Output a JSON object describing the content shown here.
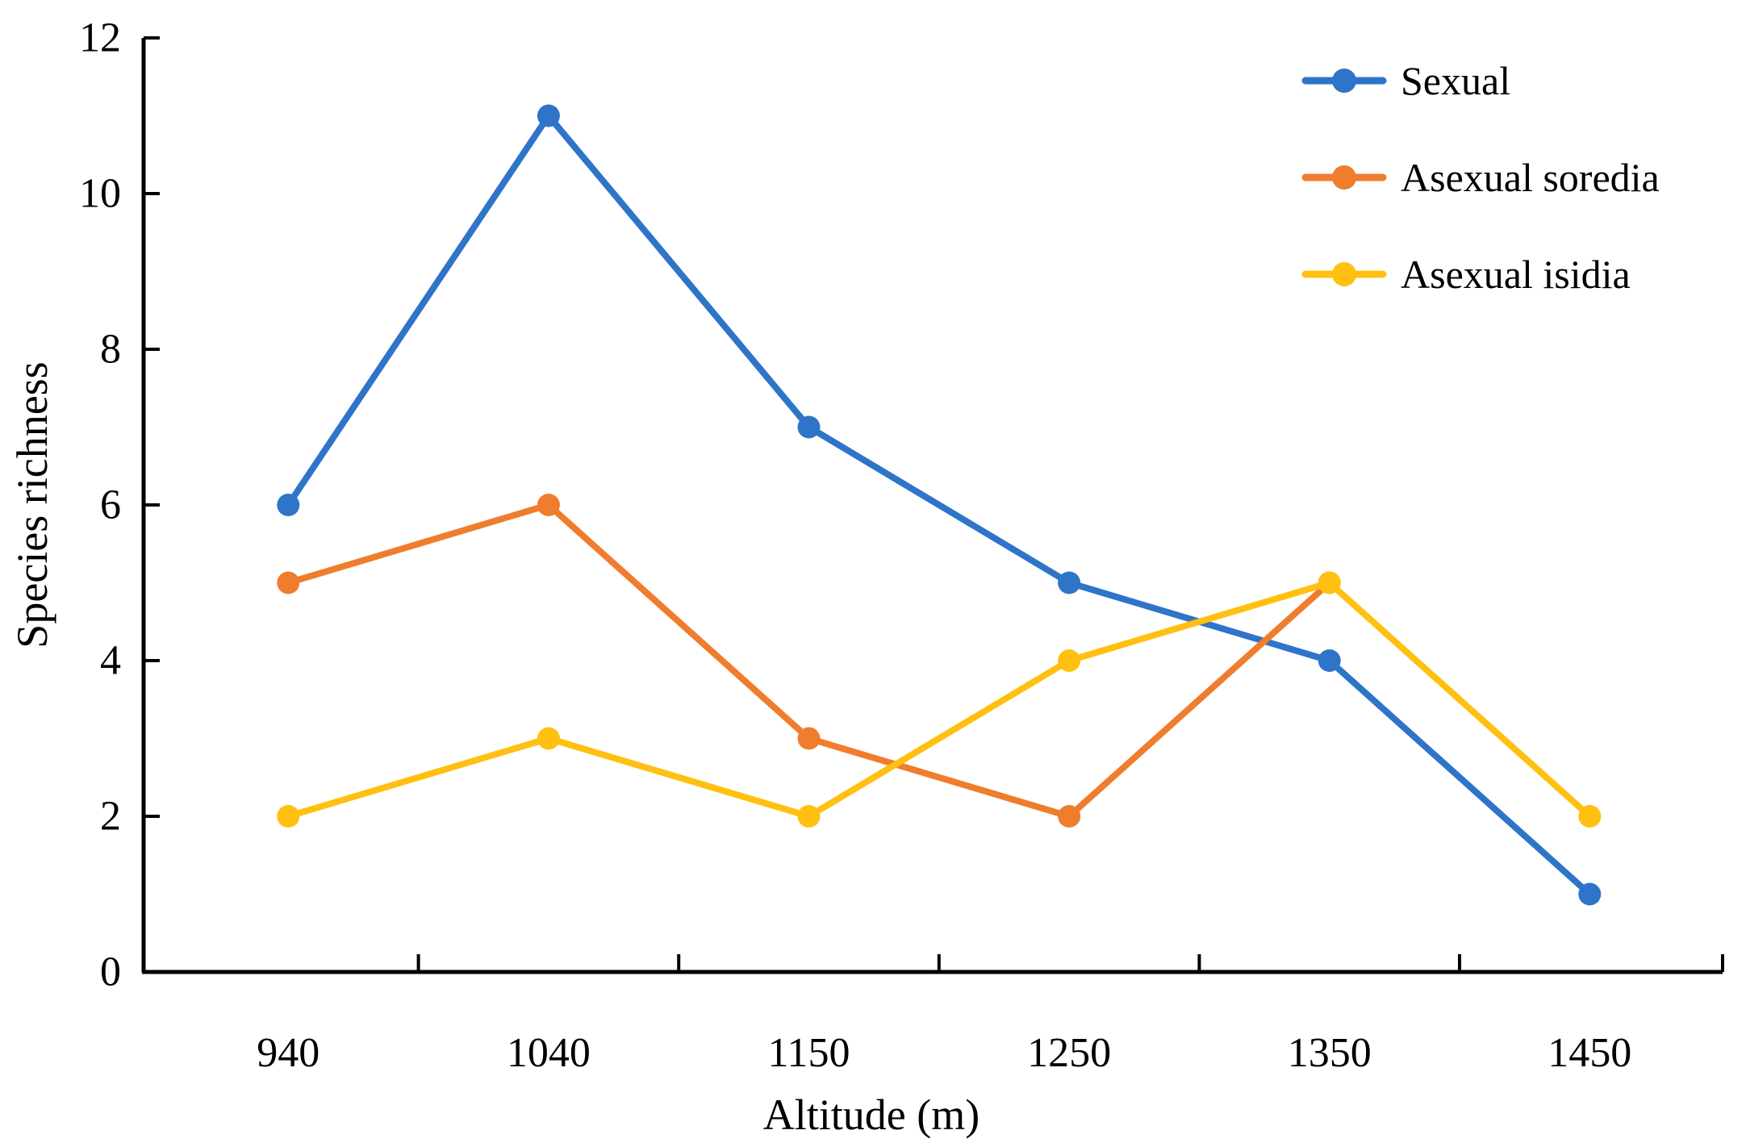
{
  "chart_data": {
    "type": "line",
    "title": "",
    "xlabel": "Altitude (m)",
    "ylabel": "Species richness",
    "categories": [
      "940",
      "1040",
      "1150",
      "1250",
      "1350",
      "1450"
    ],
    "y_ticks": [
      0,
      2,
      4,
      6,
      8,
      10,
      12
    ],
    "ylim": [
      0,
      12
    ],
    "grid": false,
    "legend_position": "top-right",
    "axis_color": "#000000",
    "series": [
      {
        "name": "Sexual",
        "color": "#2E74C9",
        "values": [
          6,
          11,
          7,
          5,
          4,
          1
        ]
      },
      {
        "name": "Asexual soredia",
        "color": "#F07D2E",
        "values": [
          5,
          6,
          3,
          2,
          5,
          null
        ]
      },
      {
        "name": "Asexual isidia",
        "color": "#FFC011",
        "values": [
          2,
          3,
          2,
          4,
          5,
          2
        ]
      }
    ]
  }
}
